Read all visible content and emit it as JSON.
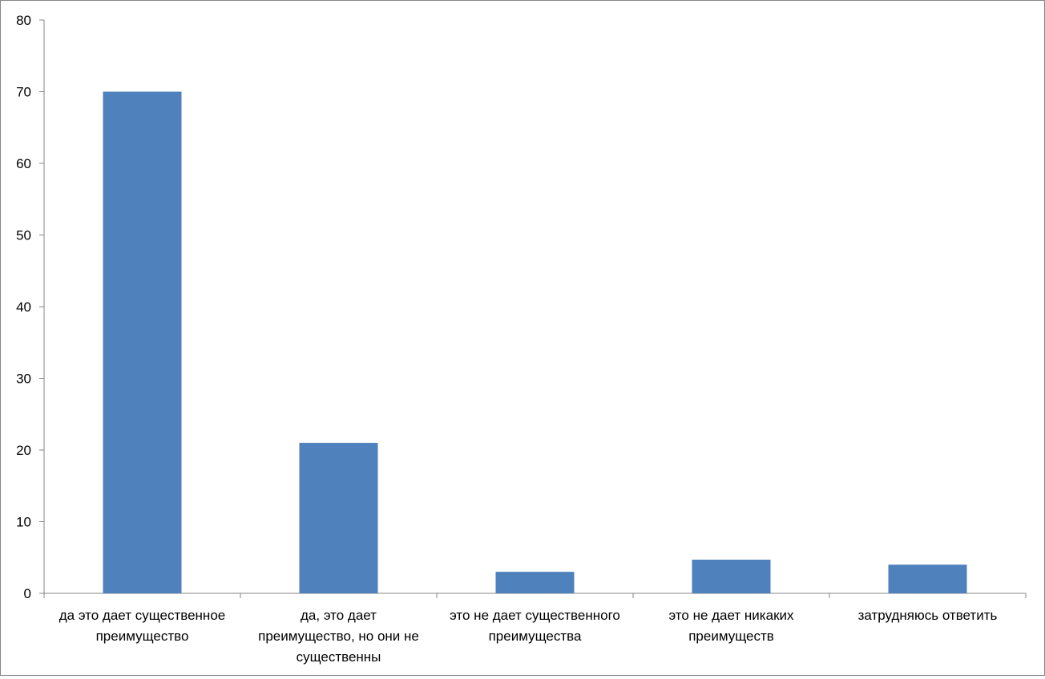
{
  "chart_data": {
    "type": "bar",
    "categories": [
      [
        "да это дает существенное",
        "преимущество"
      ],
      [
        "да, это дает",
        "преимущество, но они не",
        "существенны"
      ],
      [
        "это не дает существенного",
        "преимущества"
      ],
      [
        "это не дает никаких",
        "преимуществ"
      ],
      [
        "затрудняюсь ответить"
      ]
    ],
    "values": [
      70,
      21,
      3,
      4.7,
      4
    ],
    "ylim": [
      0,
      80
    ],
    "yticks": [
      0,
      10,
      20,
      30,
      40,
      50,
      60,
      70,
      80
    ],
    "grid": false,
    "legend": "none",
    "colors": {
      "bar": "#4f81bd",
      "axis": "#868686"
    }
  }
}
